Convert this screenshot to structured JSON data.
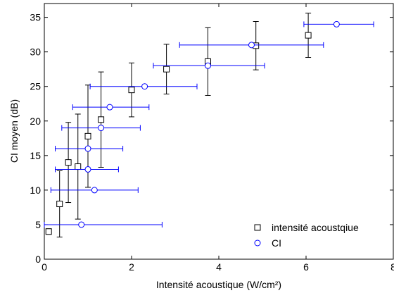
{
  "chart_data": {
    "type": "scatter",
    "title": "",
    "xlabel": "Intensité acoustique (W/cm²)",
    "ylabel": "CI moyen (dB)",
    "xlim": [
      0,
      8
    ],
    "ylim": [
      0,
      37
    ],
    "xticks": [
      0,
      2,
      4,
      6,
      8
    ],
    "yticks": [
      0,
      5,
      10,
      15,
      20,
      25,
      30,
      35
    ],
    "grid": false,
    "legend": "bottom-right",
    "series": [
      {
        "name": "intensité acoustqiue",
        "marker": "square",
        "color": "#000000",
        "errorbars": "vertical",
        "points": [
          {
            "x": 0.1,
            "y": 4.0,
            "err": 0.4
          },
          {
            "x": 0.35,
            "y": 8.0,
            "err": 4.8
          },
          {
            "x": 0.55,
            "y": 14.0,
            "err": 5.8
          },
          {
            "x": 0.77,
            "y": 13.4,
            "err": 7.6
          },
          {
            "x": 1.0,
            "y": 17.8,
            "err": 7.4
          },
          {
            "x": 1.3,
            "y": 20.2,
            "err": 6.9
          },
          {
            "x": 2.0,
            "y": 24.5,
            "err": 3.9
          },
          {
            "x": 2.8,
            "y": 27.5,
            "err": 3.6
          },
          {
            "x": 3.75,
            "y": 28.6,
            "err": 4.9
          },
          {
            "x": 4.85,
            "y": 30.9,
            "err": 3.5
          },
          {
            "x": 6.05,
            "y": 32.4,
            "err": 3.2
          }
        ]
      },
      {
        "name": "CI",
        "marker": "circle",
        "color": "#0000ff",
        "errorbars": "horizontal",
        "points": [
          {
            "x": 0.85,
            "y": 5.0,
            "xmin": 0.0,
            "xmax": 2.7
          },
          {
            "x": 1.15,
            "y": 10.0,
            "xmin": 0.15,
            "xmax": 2.15
          },
          {
            "x": 1.0,
            "y": 13.0,
            "xmin": 0.25,
            "xmax": 1.7
          },
          {
            "x": 1.0,
            "y": 16.0,
            "xmin": 0.25,
            "xmax": 1.8
          },
          {
            "x": 1.3,
            "y": 19.0,
            "xmin": 0.4,
            "xmax": 2.2
          },
          {
            "x": 1.5,
            "y": 22.0,
            "xmin": 0.65,
            "xmax": 2.4
          },
          {
            "x": 2.3,
            "y": 25.0,
            "xmin": 1.05,
            "xmax": 3.5
          },
          {
            "x": 3.75,
            "y": 28.0,
            "xmin": 2.5,
            "xmax": 5.05
          },
          {
            "x": 4.75,
            "y": 31.0,
            "xmin": 3.1,
            "xmax": 6.4
          },
          {
            "x": 6.7,
            "y": 34.0,
            "xmin": 5.95,
            "xmax": 7.55
          }
        ]
      }
    ]
  }
}
